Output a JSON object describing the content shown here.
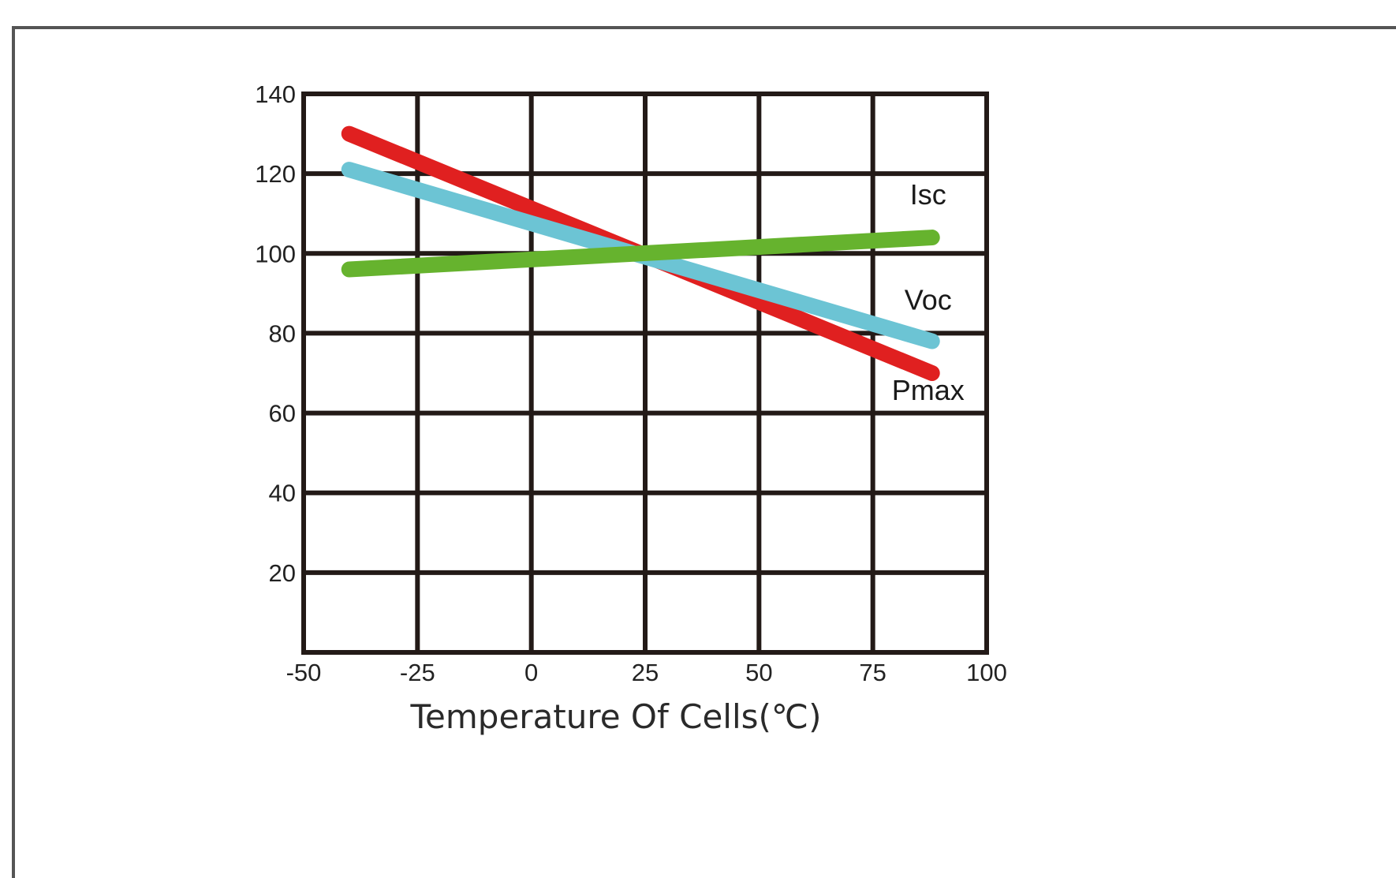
{
  "chart_data": {
    "type": "line",
    "title": "",
    "xlabel": "Temperature Of Cells(℃)",
    "ylabel": "",
    "xlim": [
      -50,
      100
    ],
    "ylim": [
      0,
      140
    ],
    "x_ticks": [
      -50,
      -25,
      0,
      25,
      50,
      75,
      100
    ],
    "y_ticks": [
      20,
      40,
      60,
      80,
      100,
      120,
      140
    ],
    "grid": true,
    "series": [
      {
        "name": "Pmax",
        "color": "#e02020",
        "x": [
          -40,
          88
        ],
        "values": [
          130,
          70
        ]
      },
      {
        "name": "Voc",
        "color": "#6cc4d4",
        "x": [
          -40,
          88
        ],
        "values": [
          121,
          78
        ]
      },
      {
        "name": "Isc",
        "color": "#66b32e",
        "x": [
          -40,
          88
        ],
        "values": [
          96,
          104
        ]
      }
    ]
  }
}
